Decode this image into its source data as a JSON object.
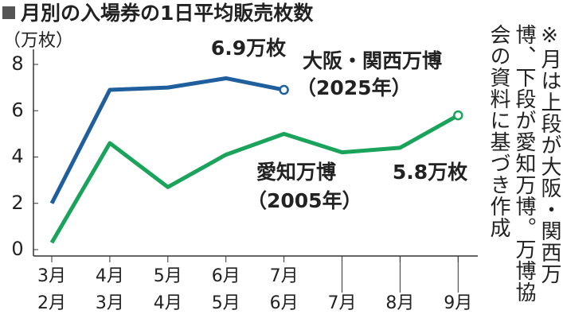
{
  "chart_data": {
    "type": "line",
    "title": "月別の入場券の1日平均販売枚数",
    "y_axis_label": "（万枚）",
    "categories": [
      [
        "3月",
        "2月"
      ],
      [
        "4月",
        "3月"
      ],
      [
        "5月",
        "4月"
      ],
      [
        "6月",
        "5月"
      ],
      [
        "7月",
        "6月"
      ],
      [
        null,
        "7月"
      ],
      [
        null,
        "8月"
      ],
      [
        null,
        "9月"
      ]
    ],
    "series": [
      {
        "name": "大阪・関西万博",
        "sub": "（2025年）",
        "color": "#1f5f9e",
        "values": [
          2.0,
          6.9,
          7.0,
          7.4,
          6.9,
          null,
          null,
          null
        ],
        "end_label": "6.9万枚"
      },
      {
        "name": "愛知万博",
        "sub": "（2005年）",
        "color": "#1aa35a",
        "values": [
          0.3,
          4.6,
          2.7,
          4.1,
          5.0,
          4.2,
          4.4,
          5.8
        ],
        "end_label": "5.8万枚"
      }
    ],
    "ylim": [
      0,
      8
    ],
    "yticks": [
      0,
      2,
      4,
      6,
      8
    ],
    "note": "※月は上段が大阪・関西万博、下段が愛知万博。万博協会の資料に基づき作成"
  }
}
